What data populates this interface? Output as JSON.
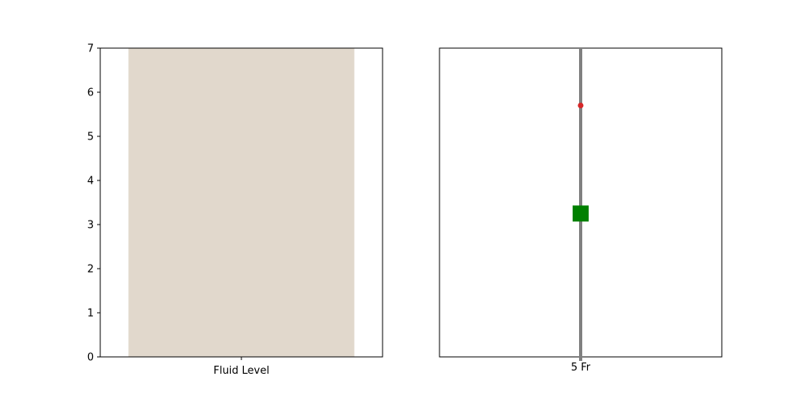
{
  "chart_data": [
    {
      "type": "bar",
      "categories": [
        "Fluid Level"
      ],
      "values": [
        7
      ],
      "ylim": [
        0,
        7
      ],
      "yticks": [
        0,
        1,
        2,
        3,
        4,
        5,
        6,
        7
      ],
      "bar_color": "#e1d8cc",
      "grid": false
    },
    {
      "type": "scatter",
      "categories": [
        "5 Fr"
      ],
      "ylim": [
        0,
        7
      ],
      "y_axis_visible": false,
      "line": {
        "color": "#808080",
        "x": 0
      },
      "markers": [
        {
          "shape": "circle",
          "y": 5.7,
          "color": "#d62728"
        },
        {
          "shape": "square",
          "y": 3.25,
          "color": "#008000"
        }
      ],
      "grid": false
    }
  ]
}
